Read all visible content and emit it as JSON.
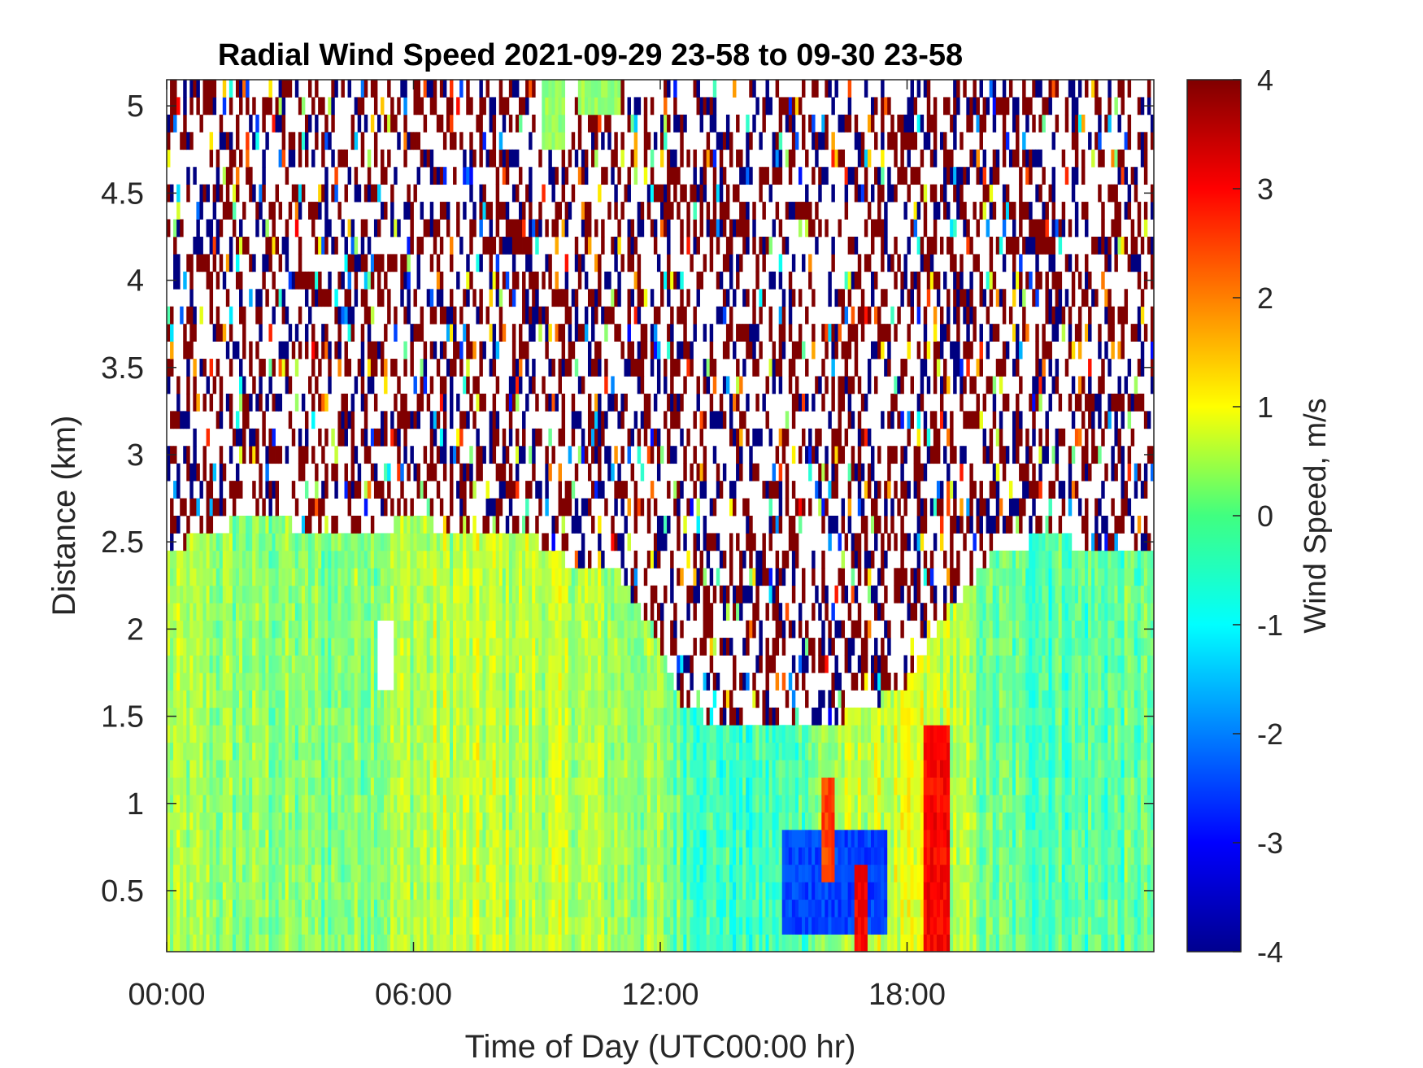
{
  "chart_data": {
    "type": "heatmap",
    "title": "Radial Wind Speed 2021-09-29 23-58 to 09-30 23-58",
    "xlabel": "Time of Day (UTC00:00 hr)",
    "ylabel": "Distance (km)",
    "colorbar_label": "Wind Speed, m/s",
    "x_unit": "hour of day",
    "xlim": [
      0,
      24
    ],
    "ylim": [
      0.15,
      5.15
    ],
    "clim": [
      -4,
      4
    ],
    "colormap": "jet",
    "x_ticks": [
      0,
      6,
      12,
      18
    ],
    "x_tick_labels": [
      "00:00",
      "06:00",
      "12:00",
      "18:00"
    ],
    "y_ticks": [
      0.5,
      1,
      1.5,
      2,
      2.5,
      3,
      3.5,
      4,
      4.5,
      5
    ],
    "y_tick_labels": [
      "0.5",
      "1",
      "1.5",
      "2",
      "2.5",
      "3",
      "3.5",
      "4",
      "4.5",
      "5"
    ],
    "colorbar_ticks": [
      -4,
      -3,
      -2,
      -1,
      0,
      1,
      2,
      3,
      4
    ],
    "colorbar_tick_labels": [
      "-4",
      "-3",
      "-2",
      "-1",
      "0",
      "1",
      "2",
      "3",
      "4"
    ],
    "valid_signal_top_km": {
      "hours": [
        0,
        1,
        2,
        3,
        4,
        5,
        6,
        7,
        8,
        9,
        10,
        11,
        12,
        12.5,
        13,
        13.5,
        14,
        15,
        16,
        17,
        18,
        18.5,
        19,
        20,
        21,
        22,
        23,
        24
      ],
      "top_km": [
        2.45,
        2.55,
        2.65,
        2.6,
        2.55,
        2.55,
        2.65,
        2.55,
        2.5,
        2.5,
        2.35,
        2.3,
        1.9,
        1.6,
        1.5,
        1.4,
        1.4,
        1.45,
        1.45,
        1.55,
        1.7,
        1.9,
        2.1,
        2.4,
        2.5,
        2.5,
        2.45,
        2.4
      ]
    },
    "mean_wind_speed_m_s": {
      "hours": [
        0,
        2,
        4,
        6,
        8,
        10,
        12,
        13,
        14,
        15,
        16,
        17,
        18,
        19,
        20,
        22,
        24
      ],
      "values": [
        0.3,
        0.1,
        0.0,
        0.4,
        0.5,
        0.4,
        0.1,
        -0.4,
        -0.6,
        -0.5,
        0.2,
        0.5,
        0.6,
        0.6,
        -0.2,
        -0.3,
        -0.2
      ]
    },
    "features": [
      {
        "type": "strong positive streak",
        "hour_start": 18.4,
        "hour_end": 19.0,
        "distance_range_km": [
          0.15,
          1.45
        ],
        "value_m_s": 3.0
      },
      {
        "type": "positive streak",
        "hour_start": 15.9,
        "hour_end": 16.2,
        "distance_range_km": [
          0.6,
          1.1
        ],
        "value_m_s": 2.5
      },
      {
        "type": "positive streak",
        "hour_start": 16.7,
        "hour_end": 17.0,
        "distance_range_km": [
          0.15,
          0.7
        ],
        "value_m_s": 3.0
      },
      {
        "type": "negative patch",
        "hour_start": 15.0,
        "hour_end": 17.5,
        "distance_range_km": [
          0.3,
          0.8
        ],
        "value_m_s": -2.5
      },
      {
        "type": "gap (no data)",
        "hour_start": 5.15,
        "hour_end": 5.55,
        "distance_range_km": [
          1.65,
          2.05
        ]
      },
      {
        "type": "green block",
        "hour_start": 9.1,
        "hour_end": 9.7,
        "distance_range_km": [
          4.8,
          5.15
        ],
        "value_m_s": 0.2
      },
      {
        "type": "green block",
        "hour_start": 10.0,
        "hour_end": 11.0,
        "distance_range_km": [
          4.95,
          5.15
        ],
        "value_m_s": 0.2
      }
    ],
    "above_signal": "sparse noise with values near ±4 m/s (white where no data)",
    "grid": false
  }
}
